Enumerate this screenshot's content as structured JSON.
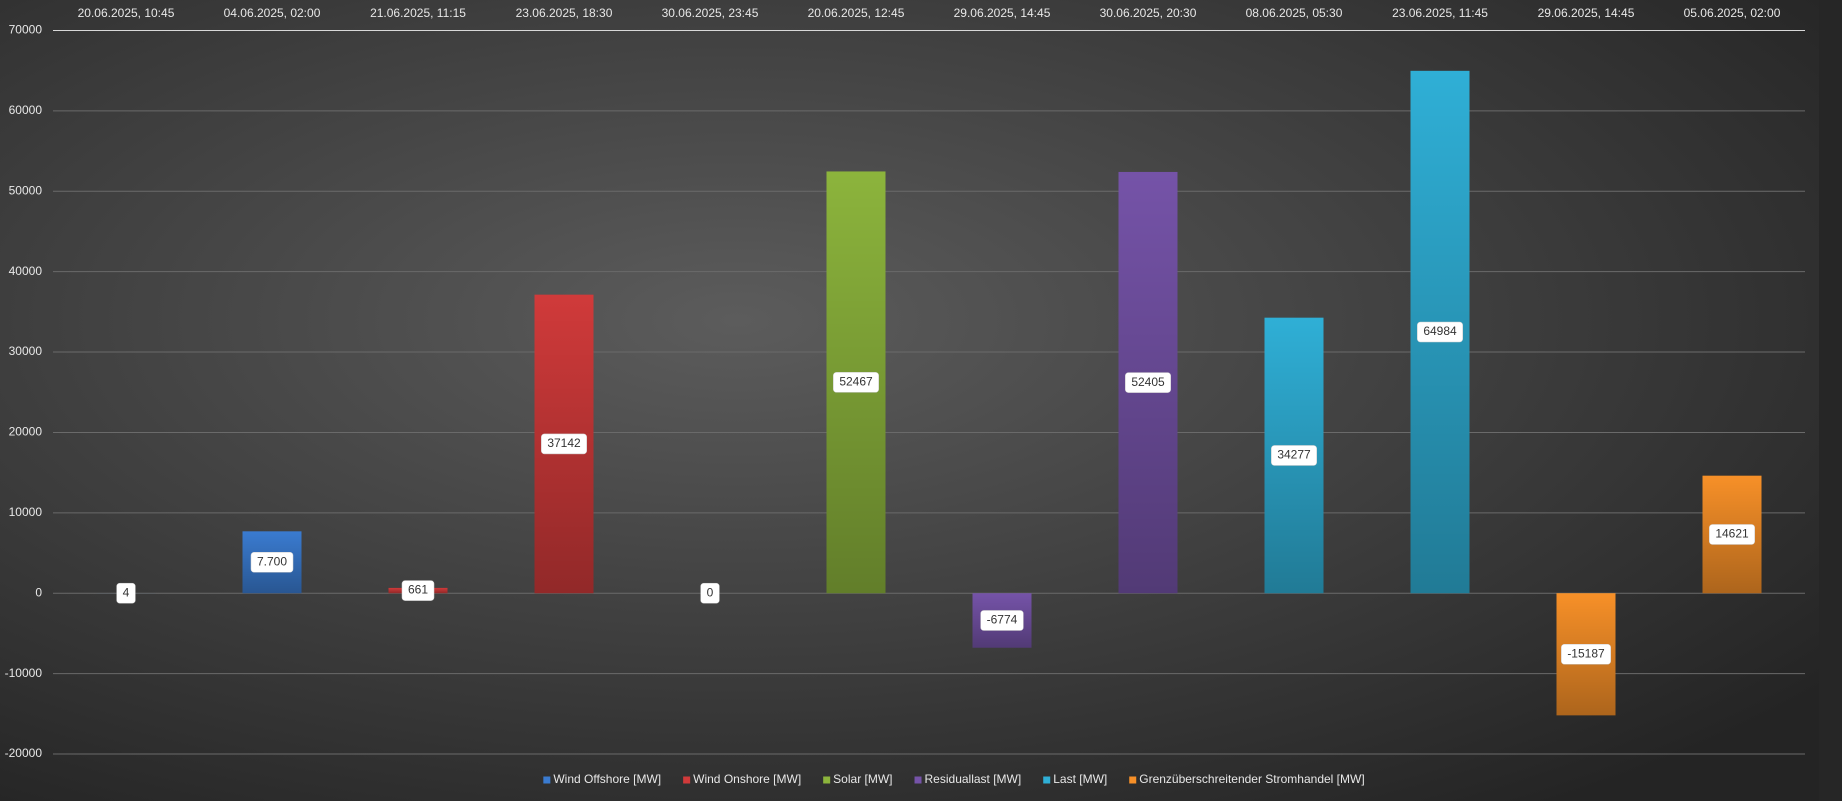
{
  "chart_data": {
    "type": "bar",
    "categories": [
      "20.06.2025, 10:45",
      "04.06.2025, 02:00",
      "21.06.2025, 11:15",
      "23.06.2025, 18:30",
      "30.06.2025, 23:45",
      "20.06.2025, 12:45",
      "29.06.2025, 14:45",
      "30.06.2025, 20:30",
      "08.06.2025, 05:30",
      "23.06.2025, 11:45",
      "29.06.2025, 14:45",
      "05.06.2025, 02:00"
    ],
    "series": [
      {
        "name": "Wind Offshore [MW]",
        "color": "#3a7bd0",
        "values": [
          4,
          7700,
          null,
          null,
          null,
          null,
          null,
          null,
          null,
          null,
          null,
          null
        ],
        "value_labels": [
          "4",
          "7.700",
          null,
          null,
          null,
          null,
          null,
          null,
          null,
          null,
          null,
          null
        ]
      },
      {
        "name": "Wind Onshore [MW]",
        "color": "#d03a3a",
        "values": [
          null,
          null,
          661,
          37142,
          null,
          null,
          null,
          null,
          null,
          null,
          null,
          null
        ]
      },
      {
        "name": "Solar [MW]",
        "color": "#8cb43c",
        "values": [
          null,
          null,
          null,
          null,
          0,
          52467,
          null,
          null,
          null,
          null,
          null,
          null
        ]
      },
      {
        "name": "Residuallast [MW]",
        "color": "#7553a8",
        "values": [
          null,
          null,
          null,
          null,
          null,
          null,
          -6774,
          52405,
          null,
          null,
          null,
          null
        ]
      },
      {
        "name": "Last [MW]",
        "color": "#2fafd6",
        "values": [
          null,
          null,
          null,
          null,
          null,
          null,
          null,
          null,
          34277,
          64984,
          null,
          null
        ]
      },
      {
        "name": "Grenzüberschreitender Stromhandel [MW]",
        "color": "#f79028",
        "values": [
          null,
          null,
          null,
          null,
          null,
          null,
          null,
          null,
          null,
          null,
          -15187,
          14621
        ]
      }
    ],
    "ylim": [
      -20000,
      70000
    ],
    "yticks": [
      -20000,
      -10000,
      0,
      10000,
      20000,
      30000,
      40000,
      50000,
      60000,
      70000
    ],
    "grid": true
  }
}
